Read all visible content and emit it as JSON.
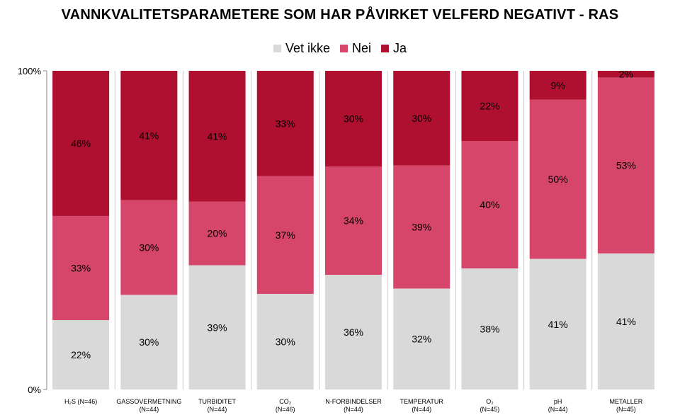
{
  "chart_data": {
    "type": "bar",
    "stacked": true,
    "title": "VANNKVALITETSPARAMETERE SOM HAR PÅVIRKET VELFERD NEGATIVT - RAS",
    "ylim": [
      0,
      100
    ],
    "yticks": [
      "0%",
      "100%"
    ],
    "legend_position": "top-center",
    "categories": [
      {
        "name": "H2S",
        "n": "(N=46)",
        "label": "H₂S (N=46)"
      },
      {
        "name": "GASSOVERMETNING",
        "n": "(N=44)"
      },
      {
        "name": "TURBIDITET",
        "n": "(N=44)"
      },
      {
        "name": "CO₂",
        "n": "(N=46)"
      },
      {
        "name": "N-FORBINDELSER",
        "n": "(N=44)"
      },
      {
        "name": "TEMPERATUR",
        "n": "(N=44)"
      },
      {
        "name": "O₂",
        "n": "(N=45)"
      },
      {
        "name": "pH",
        "n": "(N=44)"
      },
      {
        "name": "METALLER",
        "n": "(N=45)"
      }
    ],
    "series": [
      {
        "name": "Vet ikke",
        "color": "#d9d9d9",
        "values": [
          22,
          30,
          39,
          30,
          36,
          32,
          38,
          41,
          41
        ]
      },
      {
        "name": "Nei",
        "color": "#d6456a",
        "values": [
          33,
          30,
          20,
          37,
          34,
          39,
          40,
          50,
          53
        ]
      },
      {
        "name": "Ja",
        "color": "#b01030",
        "values": [
          46,
          41,
          41,
          33,
          30,
          30,
          22,
          9,
          2
        ]
      }
    ]
  }
}
